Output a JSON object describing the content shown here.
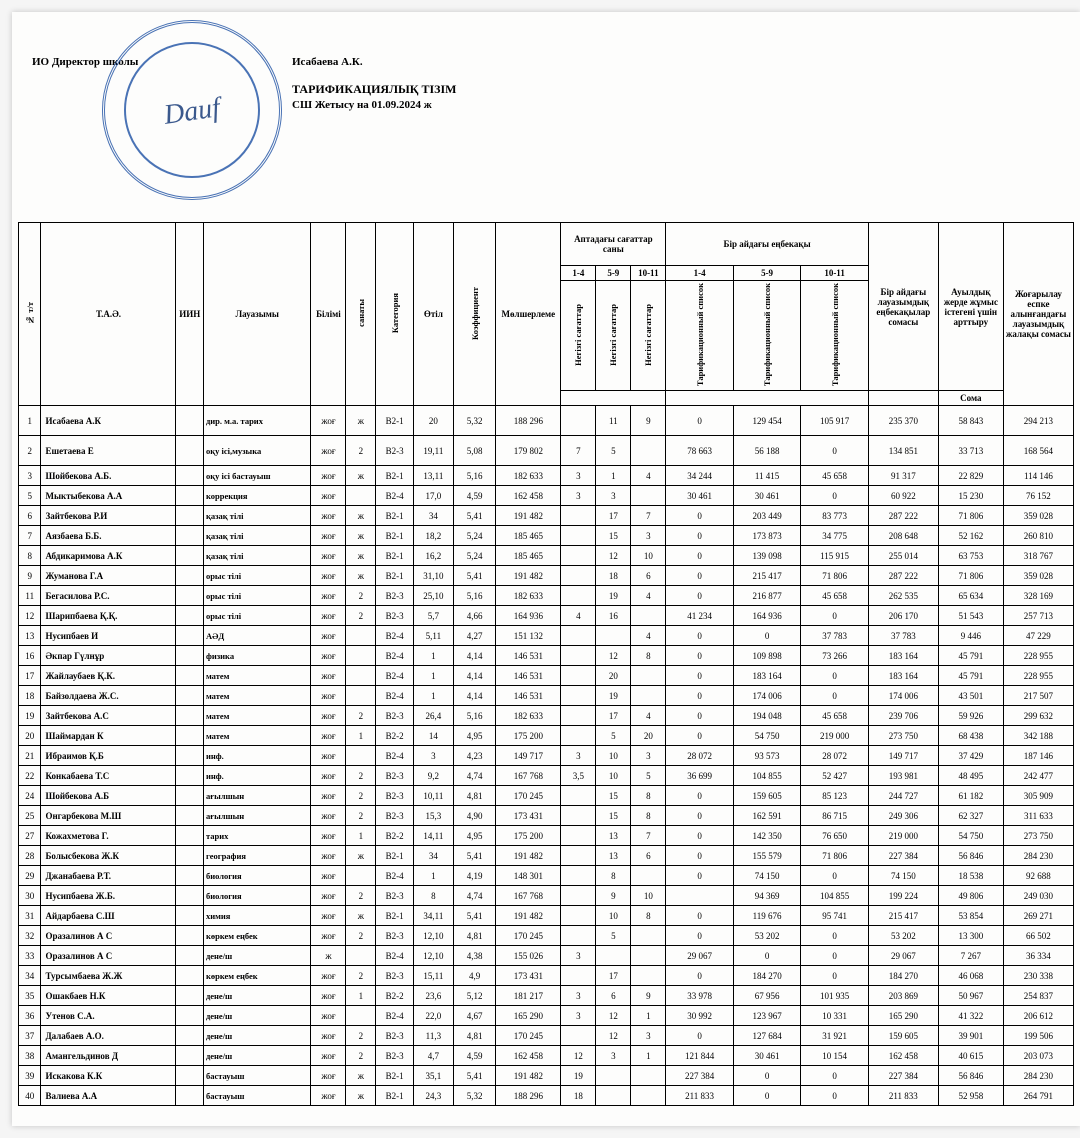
{
  "header": {
    "left": "ИО Директор школы",
    "name": "Исабаева А.К.",
    "title": "ТАРИФИКАЦИЯЛЫҚ ТІЗІМ",
    "subtitle": "СШ Жетысу на 01.09.2024 ж",
    "signature": "Dauf"
  },
  "columns": {
    "idx": "№ т/т",
    "fio": "Т.А.Ә.",
    "iin": "ИИН",
    "position": "Лауазымы",
    "education": "Білімі",
    "sanat": "санаты",
    "category": "Категория",
    "experience": "Өтіл",
    "coeff": "Коэффициент",
    "rate": "Мөлшерлеме",
    "weekHours": "Аптадағы сағаттар саны",
    "monthlyPay": "Бір айдағы еңбекақы",
    "h14": "1-4",
    "h59": "5-9",
    "h1011": "10-11",
    "vlist": "Тарификационный список",
    "vhours": "Негізгі сағаттар",
    "sumPos": "Бір айдағы лауазымдық еңбекақылар сомасы",
    "rural": "Ауылдық жерде жұмыс істегені үшін арттыру",
    "upgrade": "Жоғарылау еспке алынғандағы лауазымдық жалақы сомасы",
    "soma": "Сома"
  },
  "rows": [
    {
      "n": "1",
      "name": "Исабаева А.К",
      "pos": "дир. м.а. тарих",
      "ed": "жоғ",
      "san": "ж",
      "cat": "B2-1",
      "exp": "20",
      "coef": "5,32",
      "rate": "188 296",
      "h14": "",
      "h59": "11",
      "h10": "9",
      "s14": "0",
      "s59": "129 454",
      "s10": "105 917",
      "sum": "235 370",
      "rur": "58 843",
      "up": "294 213",
      "big": true
    },
    {
      "n": "2",
      "name": "Ешетаева Е",
      "pos": "оқу ісі,музыка",
      "ed": "жоғ",
      "san": "2",
      "cat": "B2-3",
      "exp": "19,11",
      "coef": "5,08",
      "rate": "179 802",
      "h14": "7",
      "h59": "5",
      "h10": "",
      "s14": "78 663",
      "s59": "56 188",
      "s10": "0",
      "sum": "134 851",
      "rur": "33 713",
      "up": "168 564",
      "big": true
    },
    {
      "n": "3",
      "name": "Шойбекова А.Б.",
      "pos": "оқу ісі бастауыш",
      "ed": "жоғ",
      "san": "ж",
      "cat": "B2-1",
      "exp": "13,11",
      "coef": "5,16",
      "rate": "182 633",
      "h14": "3",
      "h59": "1",
      "h10": "4",
      "s14": "34 244",
      "s59": "11 415",
      "s10": "45 658",
      "sum": "91 317",
      "rur": "22 829",
      "up": "114 146"
    },
    {
      "n": "5",
      "name": "Мыктыбекова А.А",
      "pos": "коррекция",
      "ed": "жоғ",
      "san": "",
      "cat": "B2-4",
      "exp": "17,0",
      "coef": "4,59",
      "rate": "162 458",
      "h14": "3",
      "h59": "3",
      "h10": "",
      "s14": "30 461",
      "s59": "30 461",
      "s10": "0",
      "sum": "60 922",
      "rur": "15 230",
      "up": "76 152"
    },
    {
      "n": "6",
      "name": "Зайтбекова Р.И",
      "pos": "қазақ тілі",
      "ed": "жоғ",
      "san": "ж",
      "cat": "B2-1",
      "exp": "34",
      "coef": "5,41",
      "rate": "191 482",
      "h14": "",
      "h59": "17",
      "h10": "7",
      "s14": "0",
      "s59": "203 449",
      "s10": "83 773",
      "sum": "287 222",
      "rur": "71 806",
      "up": "359 028"
    },
    {
      "n": "7",
      "name": "Аязбаева Б.Б.",
      "pos": "қазақ тілі",
      "ed": "жоғ",
      "san": "ж",
      "cat": "B2-1",
      "exp": "18,2",
      "coef": "5,24",
      "rate": "185 465",
      "h14": "",
      "h59": "15",
      "h10": "3",
      "s14": "0",
      "s59": "173 873",
      "s10": "34 775",
      "sum": "208 648",
      "rur": "52 162",
      "up": "260 810"
    },
    {
      "n": "8",
      "name": "Абдикаримова А.К",
      "pos": "қазақ тілі",
      "ed": "жоғ",
      "san": "ж",
      "cat": "B2-1",
      "exp": "16,2",
      "coef": "5,24",
      "rate": "185 465",
      "h14": "",
      "h59": "12",
      "h10": "10",
      "s14": "0",
      "s59": "139 098",
      "s10": "115 915",
      "sum": "255 014",
      "rur": "63 753",
      "up": "318 767"
    },
    {
      "n": "9",
      "name": "Жуманова Г.А",
      "pos": "орыс тілі",
      "ed": "жоғ",
      "san": "ж",
      "cat": "B2-1",
      "exp": "31,10",
      "coef": "5,41",
      "rate": "191 482",
      "h14": "",
      "h59": "18",
      "h10": "6",
      "s14": "0",
      "s59": "215 417",
      "s10": "71 806",
      "sum": "287 222",
      "rur": "71 806",
      "up": "359 028"
    },
    {
      "n": "11",
      "name": "Бегасилова Р.С.",
      "pos": "орыс тілі",
      "ed": "жоғ",
      "san": "2",
      "cat": "B2-3",
      "exp": "25,10",
      "coef": "5,16",
      "rate": "182 633",
      "h14": "",
      "h59": "19",
      "h10": "4",
      "s14": "0",
      "s59": "216 877",
      "s10": "45 658",
      "sum": "262 535",
      "rur": "65 634",
      "up": "328 169"
    },
    {
      "n": "12",
      "name": "Шарипбаева Қ.Қ.",
      "pos": "орыс тілі",
      "ed": "жоғ",
      "san": "2",
      "cat": "B2-3",
      "exp": "5,7",
      "coef": "4,66",
      "rate": "164 936",
      "h14": "4",
      "h59": "16",
      "h10": "",
      "s14": "41 234",
      "s59": "164 936",
      "s10": "0",
      "sum": "206 170",
      "rur": "51 543",
      "up": "257 713"
    },
    {
      "n": "13",
      "name": "Нусипбаев И",
      "pos": "АӘД",
      "ed": "жоғ",
      "san": "",
      "cat": "B2-4",
      "exp": "5,11",
      "coef": "4,27",
      "rate": "151 132",
      "h14": "",
      "h59": "",
      "h10": "4",
      "s14": "0",
      "s59": "0",
      "s10": "37 783",
      "sum": "37 783",
      "rur": "9 446",
      "up": "47 229"
    },
    {
      "n": "16",
      "name": "Әкпар Гүлнұр",
      "pos": "физика",
      "ed": "жоғ",
      "san": "",
      "cat": "B2-4",
      "exp": "1",
      "coef": "4,14",
      "rate": "146 531",
      "h14": "",
      "h59": "12",
      "h10": "8",
      "s14": "0",
      "s59": "109 898",
      "s10": "73 266",
      "sum": "183 164",
      "rur": "45 791",
      "up": "228 955"
    },
    {
      "n": "17",
      "name": "Жайлаубаев Қ.К.",
      "pos": "матем",
      "ed": "жоғ",
      "san": "",
      "cat": "B2-4",
      "exp": "1",
      "coef": "4,14",
      "rate": "146 531",
      "h14": "",
      "h59": "20",
      "h10": "",
      "s14": "0",
      "s59": "183 164",
      "s10": "0",
      "sum": "183 164",
      "rur": "45 791",
      "up": "228 955"
    },
    {
      "n": "18",
      "name": "Байзолдаева Ж.С.",
      "pos": "матем",
      "ed": "жоғ",
      "san": "",
      "cat": "B2-4",
      "exp": "1",
      "coef": "4,14",
      "rate": "146 531",
      "h14": "",
      "h59": "19",
      "h10": "",
      "s14": "0",
      "s59": "174 006",
      "s10": "0",
      "sum": "174 006",
      "rur": "43 501",
      "up": "217 507"
    },
    {
      "n": "19",
      "name": "Зайтбекова А.С",
      "pos": "матем",
      "ed": "жоғ",
      "san": "2",
      "cat": "B2-3",
      "exp": "26,4",
      "coef": "5,16",
      "rate": "182 633",
      "h14": "",
      "h59": "17",
      "h10": "4",
      "s14": "0",
      "s59": "194 048",
      "s10": "45 658",
      "sum": "239 706",
      "rur": "59 926",
      "up": "299 632"
    },
    {
      "n": "20",
      "name": "Шаймардан К",
      "pos": "матем",
      "ed": "жоғ",
      "san": "1",
      "cat": "B2-2",
      "exp": "14",
      "coef": "4,95",
      "rate": "175 200",
      "h14": "",
      "h59": "5",
      "h10": "20",
      "s14": "0",
      "s59": "54 750",
      "s10": "219 000",
      "sum": "273 750",
      "rur": "68 438",
      "up": "342 188"
    },
    {
      "n": "21",
      "name": "Ибраимов Қ.Б",
      "pos": "инф.",
      "ed": "жоғ",
      "san": "",
      "cat": "B2-4",
      "exp": "3",
      "coef": "4,23",
      "rate": "149 717",
      "h14": "3",
      "h59": "10",
      "h10": "3",
      "s14": "28 072",
      "s59": "93 573",
      "s10": "28 072",
      "sum": "149 717",
      "rur": "37 429",
      "up": "187 146"
    },
    {
      "n": "22",
      "name": "Конкабаева Т.С",
      "pos": "инф.",
      "ed": "жоғ",
      "san": "2",
      "cat": "B2-3",
      "exp": "9,2",
      "coef": "4,74",
      "rate": "167 768",
      "h14": "3,5",
      "h59": "10",
      "h10": "5",
      "s14": "36 699",
      "s59": "104 855",
      "s10": "52 427",
      "sum": "193 981",
      "rur": "48 495",
      "up": "242 477"
    },
    {
      "n": "24",
      "name": "Шойбекова А.Б",
      "pos": "ағылшын",
      "ed": "жоғ",
      "san": "2",
      "cat": "B2-3",
      "exp": "10,11",
      "coef": "4,81",
      "rate": "170 245",
      "h14": "",
      "h59": "15",
      "h10": "8",
      "s14": "0",
      "s59": "159 605",
      "s10": "85 123",
      "sum": "244 727",
      "rur": "61 182",
      "up": "305 909"
    },
    {
      "n": "25",
      "name": "Онгарбекова М.Ш",
      "pos": "ағылшын",
      "ed": "жоғ",
      "san": "2",
      "cat": "B2-3",
      "exp": "15,3",
      "coef": "4,90",
      "rate": "173 431",
      "h14": "",
      "h59": "15",
      "h10": "8",
      "s14": "0",
      "s59": "162 591",
      "s10": "86 715",
      "sum": "249 306",
      "rur": "62 327",
      "up": "311 633"
    },
    {
      "n": "27",
      "name": "Кожахметова Г.",
      "pos": "тарих",
      "ed": "жоғ",
      "san": "1",
      "cat": "B2-2",
      "exp": "14,11",
      "coef": "4,95",
      "rate": "175 200",
      "h14": "",
      "h59": "13",
      "h10": "7",
      "s14": "0",
      "s59": "142 350",
      "s10": "76 650",
      "sum": "219 000",
      "rur": "54 750",
      "up": "273 750"
    },
    {
      "n": "28",
      "name": "Болысбекова Ж.К",
      "pos": "география",
      "ed": "жоғ",
      "san": "ж",
      "cat": "B2-1",
      "exp": "34",
      "coef": "5,41",
      "rate": "191 482",
      "h14": "",
      "h59": "13",
      "h10": "6",
      "s14": "0",
      "s59": "155 579",
      "s10": "71 806",
      "sum": "227 384",
      "rur": "56 846",
      "up": "284 230"
    },
    {
      "n": "29",
      "name": "Джанабаева Р.Т.",
      "pos": "биология",
      "ed": "жоғ",
      "san": "",
      "cat": "B2-4",
      "exp": "1",
      "coef": "4,19",
      "rate": "148 301",
      "h14": "",
      "h59": "8",
      "h10": "",
      "s14": "0",
      "s59": "74 150",
      "s10": "0",
      "sum": "74 150",
      "rur": "18 538",
      "up": "92 688"
    },
    {
      "n": "30",
      "name": "Нусипбаева Ж.Б.",
      "pos": "биология",
      "ed": "жоғ",
      "san": "2",
      "cat": "B2-3",
      "exp": "8",
      "coef": "4,74",
      "rate": "167 768",
      "h14": "",
      "h59": "9",
      "h10": "10",
      "s14": "",
      "s59": "94 369",
      "s10": "104 855",
      "sum": "199 224",
      "rur": "49 806",
      "up": "249 030"
    },
    {
      "n": "31",
      "name": "Айдарбаева С.Ш",
      "pos": "химия",
      "ed": "жоғ",
      "san": "ж",
      "cat": "B2-1",
      "exp": "34,11",
      "coef": "5,41",
      "rate": "191 482",
      "h14": "",
      "h59": "10",
      "h10": "8",
      "s14": "0",
      "s59": "119 676",
      "s10": "95 741",
      "sum": "215 417",
      "rur": "53 854",
      "up": "269 271"
    },
    {
      "n": "32",
      "name": "Оразалинов А С",
      "pos": "көркем еңбек",
      "ed": "жоғ",
      "san": "2",
      "cat": "B2-3",
      "exp": "12,10",
      "coef": "4,81",
      "rate": "170 245",
      "h14": "",
      "h59": "5",
      "h10": "",
      "s14": "0",
      "s59": "53 202",
      "s10": "0",
      "sum": "53 202",
      "rur": "13 300",
      "up": "66 502"
    },
    {
      "n": "33",
      "name": "Оразалинов А С",
      "pos": "дене/ш",
      "ed": "ж",
      "san": "",
      "cat": "B2-4",
      "exp": "12,10",
      "coef": "4,38",
      "rate": "155 026",
      "h14": "3",
      "h59": "",
      "h10": "",
      "s14": "29 067",
      "s59": "0",
      "s10": "0",
      "sum": "29 067",
      "rur": "7 267",
      "up": "36 334"
    },
    {
      "n": "34",
      "name": "Турсымбаева Ж.Ж",
      "pos": "көркем еңбек",
      "ed": "жоғ",
      "san": "2",
      "cat": "B2-3",
      "exp": "15,11",
      "coef": "4,9",
      "rate": "173 431",
      "h14": "",
      "h59": "17",
      "h10": "",
      "s14": "0",
      "s59": "184 270",
      "s10": "0",
      "sum": "184 270",
      "rur": "46 068",
      "up": "230 338"
    },
    {
      "n": "35",
      "name": "Ошакбаев Н.К",
      "pos": "дене/ш",
      "ed": "жоғ",
      "san": "1",
      "cat": "B2-2",
      "exp": "23,6",
      "coef": "5,12",
      "rate": "181 217",
      "h14": "3",
      "h59": "6",
      "h10": "9",
      "s14": "33 978",
      "s59": "67 956",
      "s10": "101 935",
      "sum": "203 869",
      "rur": "50 967",
      "up": "254 837"
    },
    {
      "n": "36",
      "name": "Утенов С.А.",
      "pos": "дене/ш",
      "ed": "жоғ",
      "san": "",
      "cat": "B2-4",
      "exp": "22,0",
      "coef": "4,67",
      "rate": "165 290",
      "h14": "3",
      "h59": "12",
      "h10": "1",
      "s14": "30 992",
      "s59": "123 967",
      "s10": "10 331",
      "sum": "165 290",
      "rur": "41 322",
      "up": "206 612"
    },
    {
      "n": "37",
      "name": "Далабаев А.О.",
      "pos": "дене/ш",
      "ed": "жоғ",
      "san": "2",
      "cat": "B2-3",
      "exp": "11,3",
      "coef": "4,81",
      "rate": "170 245",
      "h14": "",
      "h59": "12",
      "h10": "3",
      "s14": "0",
      "s59": "127 684",
      "s10": "31 921",
      "sum": "159 605",
      "rur": "39 901",
      "up": "199 506"
    },
    {
      "n": "38",
      "name": "Амангельдинов Д",
      "pos": "дене/ш",
      "ed": "жоғ",
      "san": "2",
      "cat": "B2-3",
      "exp": "4,7",
      "coef": "4,59",
      "rate": "162 458",
      "h14": "12",
      "h59": "3",
      "h10": "1",
      "s14": "121 844",
      "s59": "30 461",
      "s10": "10 154",
      "sum": "162 458",
      "rur": "40 615",
      "up": "203 073"
    },
    {
      "n": "39",
      "name": "Искакова К.К",
      "pos": "бастауыш",
      "ed": "жоғ",
      "san": "ж",
      "cat": "B2-1",
      "exp": "35,1",
      "coef": "5,41",
      "rate": "191 482",
      "h14": "19",
      "h59": "",
      "h10": "",
      "s14": "227 384",
      "s59": "0",
      "s10": "0",
      "sum": "227 384",
      "rur": "56 846",
      "up": "284 230"
    },
    {
      "n": "40",
      "name": "Валиева А.А",
      "pos": "бастауыш",
      "ed": "жоғ",
      "san": "ж",
      "cat": "B2-1",
      "exp": "24,3",
      "coef": "5,32",
      "rate": "188 296",
      "h14": "18",
      "h59": "",
      "h10": "",
      "s14": "211 833",
      "s59": "0",
      "s10": "0",
      "sum": "211 833",
      "rur": "52 958",
      "up": "264 791"
    }
  ]
}
